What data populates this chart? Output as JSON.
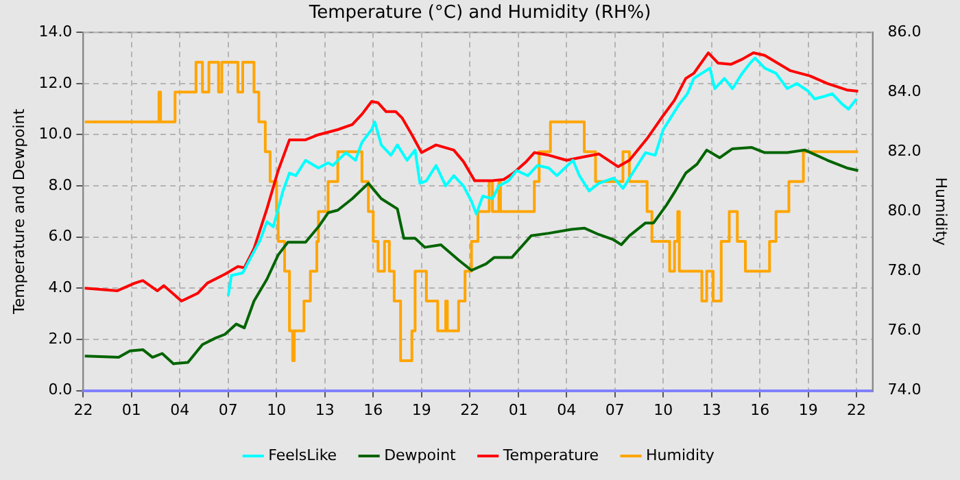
{
  "chart_data": {
    "type": "line",
    "title": "Temperature (°C) and Humidity (RH%)",
    "ylabel": "Temperature and Dewpoint",
    "y2label": "Humidity",
    "xlim": [
      "--01-01T22:00",
      "--01-03T23:00"
    ],
    "xticks": [
      {
        "value": "--01-01T22:00",
        "label": "22"
      },
      {
        "value": "--01-02T01:00",
        "label": "01"
      },
      {
        "value": "--01-02T04:00",
        "label": "04"
      },
      {
        "value": "--01-02T07:00",
        "label": "07"
      },
      {
        "value": "--01-02T10:00",
        "label": "10"
      },
      {
        "value": "--01-02T13:00",
        "label": "13"
      },
      {
        "value": "--01-02T16:00",
        "label": "16"
      },
      {
        "value": "--01-02T19:00",
        "label": "19"
      },
      {
        "value": "--01-02T22:00",
        "label": "22"
      },
      {
        "value": "--01-03T01:00",
        "label": "01"
      },
      {
        "value": "--01-03T04:00",
        "label": "04"
      },
      {
        "value": "--01-03T07:00",
        "label": "07"
      },
      {
        "value": "--01-03T10:00",
        "label": "10"
      },
      {
        "value": "--01-03T13:00",
        "label": "13"
      },
      {
        "value": "--01-03T16:00",
        "label": "16"
      },
      {
        "value": "--01-03T19:00",
        "label": "19"
      },
      {
        "value": "--01-03T22:00",
        "label": "22"
      }
    ],
    "ylim": [
      0,
      14
    ],
    "yticks": [
      {
        "value": 0,
        "label": "0.0"
      },
      {
        "value": 2,
        "label": "2.0"
      },
      {
        "value": 4,
        "label": "4.0"
      },
      {
        "value": 6,
        "label": "6.0"
      },
      {
        "value": 8,
        "label": "8.0"
      },
      {
        "value": 10,
        "label": "10.0"
      },
      {
        "value": 12,
        "label": "12.0"
      },
      {
        "value": 14,
        "label": "14.0"
      }
    ],
    "y2lim": [
      74,
      86
    ],
    "y2ticks": [
      {
        "value": 74,
        "label": "74.0"
      },
      {
        "value": 76,
        "label": "76.0"
      },
      {
        "value": 78,
        "label": "78.0"
      },
      {
        "value": 80,
        "label": "80.0"
      },
      {
        "value": 82,
        "label": "82.0"
      },
      {
        "value": 84,
        "label": "84.0"
      },
      {
        "value": 86,
        "label": "86.0"
      }
    ],
    "grid": true,
    "legend": "bottom",
    "marker": "none",
    "series": [
      {
        "name": "FeelsLike",
        "color": "#00ffff",
        "x": [
          "--01-02T07:00",
          "--01-02T07:12",
          "--01-02T07:54",
          "--01-02T08:24",
          "--01-02T09:00",
          "--01-02T09:24",
          "--01-02T09:48",
          "--01-02T10:06",
          "--01-02T10:24",
          "--01-02T10:48",
          "--01-02T11:12",
          "--01-02T11:48",
          "--01-02T12:36",
          "--01-02T13:12",
          "--01-02T13:30",
          "--01-02T14:18",
          "--01-02T14:54",
          "--01-02T15:18",
          "--01-02T15:54",
          "--01-02T16:06",
          "--01-02T16:30",
          "--01-02T17:06",
          "--01-02T17:30",
          "--01-02T18:06",
          "--01-02T18:36",
          "--01-02T18:54",
          "--01-02T19:18",
          "--01-02T19:54",
          "--01-02T20:30",
          "--01-02T21:00",
          "--01-02T21:36",
          "--01-02T22:06",
          "--01-02T22:24",
          "--01-02T22:48",
          "--01-02T23:24",
          "--01-02T23:48",
          "--01-03T00:24",
          "--01-03T00:54",
          "--01-03T01:36",
          "--01-03T02:12",
          "--01-03T02:54",
          "--01-03T03:24",
          "--01-03T04:24",
          "--01-03T04:48",
          "--01-03T05:24",
          "--01-03T06:00",
          "--01-03T06:54",
          "--01-03T07:06",
          "--01-03T07:30",
          "--01-03T08:24",
          "--01-03T08:54",
          "--01-03T09:30",
          "--01-03T10:00",
          "--01-03T10:24",
          "--01-03T11:00",
          "--01-03T11:30",
          "--01-03T11:54",
          "--01-03T12:24",
          "--01-03T12:54",
          "--01-03T13:12",
          "--01-03T13:48",
          "--01-03T14:18",
          "--01-03T14:54",
          "--01-03T15:24",
          "--01-03T15:42",
          "--01-03T16:18",
          "--01-03T17:00",
          "--01-03T17:42",
          "--01-03T18:18",
          "--01-03T19:00",
          "--01-03T19:24",
          "--01-03T20:00",
          "--01-03T20:30",
          "--01-03T21:06",
          "--01-03T21:30",
          "--01-03T22:00"
        ],
        "values": [
          3.7,
          4.5,
          4.6,
          5.2,
          5.9,
          6.6,
          6.4,
          7.1,
          7.8,
          8.5,
          8.4,
          9.0,
          8.7,
          8.9,
          8.8,
          9.3,
          9.0,
          9.7,
          10.2,
          10.5,
          9.6,
          9.2,
          9.6,
          9.0,
          9.4,
          8.1,
          8.2,
          8.8,
          8.0,
          8.4,
          8.0,
          7.4,
          6.9,
          7.6,
          7.5,
          8.0,
          8.2,
          8.6,
          8.4,
          8.8,
          8.7,
          8.4,
          9.0,
          8.4,
          7.8,
          8.1,
          8.3,
          8.2,
          7.9,
          8.8,
          9.3,
          9.2,
          10.2,
          10.6,
          11.2,
          11.6,
          12.2,
          12.4,
          12.6,
          11.8,
          12.2,
          11.8,
          12.4,
          12.8,
          13.0,
          12.6,
          12.4,
          11.8,
          12.0,
          11.7,
          11.4,
          11.5,
          11.6,
          11.2,
          11.0,
          11.4
        ]
      },
      {
        "name": "Dewpoint",
        "color": "#006400",
        "x": [
          "--01-01T22:06",
          "--01-02T00:12",
          "--01-02T00:54",
          "--01-02T01:42",
          "--01-02T02:18",
          "--01-02T02:54",
          "--01-02T03:36",
          "--01-02T04:30",
          "--01-02T05:24",
          "--01-02T06:12",
          "--01-02T06:48",
          "--01-02T07:30",
          "--01-02T08:00",
          "--01-02T08:36",
          "--01-02T09:24",
          "--01-02T10:06",
          "--01-02T10:42",
          "--01-02T11:48",
          "--01-02T12:36",
          "--01-02T13:12",
          "--01-02T13:48",
          "--01-02T14:42",
          "--01-02T15:42",
          "--01-02T16:30",
          "--01-02T17:30",
          "--01-02T17:54",
          "--01-02T18:36",
          "--01-02T19:12",
          "--01-02T20:12",
          "--01-02T21:18",
          "--01-02T22:06",
          "--01-02T23:00",
          "--01-02T23:30",
          "--01-03T00:36",
          "--01-03T01:48",
          "--01-03T02:54",
          "--01-03T04:18",
          "--01-03T05:06",
          "--01-03T06:00",
          "--01-03T06:54",
          "--01-03T07:24",
          "--01-03T07:54",
          "--01-03T08:54",
          "--01-03T09:24",
          "--01-03T10:12",
          "--01-03T10:42",
          "--01-03T11:24",
          "--01-03T12:06",
          "--01-03T12:42",
          "--01-03T13:30",
          "--01-03T14:18",
          "--01-03T15:30",
          "--01-03T16:18",
          "--01-03T17:42",
          "--01-03T18:48",
          "--01-03T20:12",
          "--01-03T21:24",
          "--01-03T22:06"
        ],
        "values": [
          1.35,
          1.3,
          1.55,
          1.6,
          1.3,
          1.45,
          1.05,
          1.1,
          1.8,
          2.05,
          2.2,
          2.6,
          2.45,
          3.5,
          4.35,
          5.3,
          5.8,
          5.8,
          6.4,
          6.95,
          7.05,
          7.5,
          8.1,
          7.5,
          7.1,
          5.95,
          5.95,
          5.6,
          5.7,
          5.1,
          4.7,
          4.95,
          5.2,
          5.2,
          6.05,
          6.15,
          6.3,
          6.35,
          6.1,
          5.9,
          5.7,
          6.05,
          6.55,
          6.55,
          7.25,
          7.75,
          8.5,
          8.85,
          9.4,
          9.1,
          9.45,
          9.5,
          9.3,
          9.3,
          9.4,
          9.0,
          8.7,
          8.6
        ]
      },
      {
        "name": "Temperature",
        "color": "#ff0000",
        "x": [
          "--01-01T22:06",
          "--01-02T00:06",
          "--01-02T01:12",
          "--01-02T01:42",
          "--01-02T02:36",
          "--01-02T03:00",
          "--01-02T04:06",
          "--01-02T05:06",
          "--01-02T05:42",
          "--01-02T06:48",
          "--01-02T07:36",
          "--01-02T08:00",
          "--01-02T08:36",
          "--01-02T09:24",
          "--01-02T10:06",
          "--01-02T10:48",
          "--01-02T11:48",
          "--01-02T12:36",
          "--01-02T13:48",
          "--01-02T14:42",
          "--01-02T15:18",
          "--01-02T15:54",
          "--01-02T16:18",
          "--01-02T16:48",
          "--01-02T17:24",
          "--01-02T17:48",
          "--01-02T18:24",
          "--01-02T19:00",
          "--01-02T19:54",
          "--01-02T21:00",
          "--01-02T21:36",
          "--01-02T22:18",
          "--01-02T23:18",
          "--01-03T00:06",
          "--01-03T00:42",
          "--01-03T01:30",
          "--01-03T02:00",
          "--01-03T02:54",
          "--01-03T04:00",
          "--01-03T04:48",
          "--01-03T06:00",
          "--01-03T07:12",
          "--01-03T07:54",
          "--01-03T09:00",
          "--01-03T10:00",
          "--01-03T10:42",
          "--01-03T11:24",
          "--01-03T11:54",
          "--01-03T12:48",
          "--01-03T13:24",
          "--01-03T14:12",
          "--01-03T14:54",
          "--01-03T15:36",
          "--01-03T16:18",
          "--01-03T17:06",
          "--01-03T17:54",
          "--01-03T19:06",
          "--01-03T20:12",
          "--01-03T21:24",
          "--01-03T22:06"
        ],
        "values": [
          4.0,
          3.9,
          4.2,
          4.3,
          3.9,
          4.1,
          3.5,
          3.8,
          4.2,
          4.55,
          4.85,
          4.8,
          5.55,
          7.1,
          8.6,
          9.8,
          9.8,
          10.0,
          10.2,
          10.4,
          10.8,
          11.3,
          11.25,
          10.9,
          10.9,
          10.65,
          10.0,
          9.3,
          9.6,
          9.4,
          8.95,
          8.2,
          8.2,
          8.25,
          8.5,
          8.95,
          9.3,
          9.2,
          9.0,
          9.1,
          9.25,
          8.75,
          9.0,
          9.85,
          10.75,
          11.35,
          12.2,
          12.4,
          13.2,
          12.8,
          12.75,
          12.95,
          13.2,
          13.1,
          12.8,
          12.5,
          12.3,
          12.0,
          11.75,
          11.7
        ]
      },
      {
        "name": "Humidity",
        "color": "#ffa500",
        "type": "step",
        "axis": "y2",
        "x": [
          "--01-01T22:06",
          "--01-02T02:42",
          "--01-02T02:48",
          "--01-02T03:42",
          "--01-02T05:00",
          "--01-02T05:24",
          "--01-02T05:48",
          "--01-02T06:24",
          "--01-02T06:36",
          "--01-02T07:36",
          "--01-02T07:54",
          "--01-02T08:36",
          "--01-02T08:54",
          "--01-02T09:18",
          "--01-02T09:36",
          "--01-02T10:00",
          "--01-02T10:06",
          "--01-02T10:30",
          "--01-02T10:48",
          "--01-02T11:00",
          "--01-02T11:06",
          "--01-02T11:42",
          "--01-02T12:06",
          "--01-02T12:30",
          "--01-02T12:36",
          "--01-02T13:12",
          "--01-02T13:48",
          "--01-02T15:18",
          "--01-02T15:42",
          "--01-02T16:00",
          "--01-02T16:18",
          "--01-02T16:42",
          "--01-02T17:00",
          "--01-02T17:18",
          "--01-02T17:42",
          "--01-02T18:24",
          "--01-02T18:36",
          "--01-02T19:18",
          "--01-02T20:00",
          "--01-02T20:30",
          "--01-02T20:36",
          "--01-02T21:18",
          "--01-02T21:42",
          "--01-02T22:06",
          "--01-02T22:30",
          "--01-02T23:12",
          "--01-02T23:24",
          "--01-02T23:48",
          "--01-02T23:54",
          "--01-03T02:00",
          "--01-03T02:18",
          "--01-03T03:00",
          "--01-03T05:06",
          "--01-03T05:48",
          "--01-03T07:30",
          "--01-03T07:54",
          "--01-03T09:00",
          "--01-03T09:18",
          "--01-03T10:24",
          "--01-03T10:42",
          "--01-03T10:54",
          "--01-03T11:00",
          "--01-03T12:24",
          "--01-03T12:42",
          "--01-03T13:06",
          "--01-03T13:36",
          "--01-03T14:06",
          "--01-03T14:36",
          "--01-03T15:06",
          "--01-03T16:36",
          "--01-03T17:00",
          "--01-03T17:48",
          "--01-03T18:42",
          "--01-03T22:06"
        ],
        "values": [
          83.0,
          84.0,
          83.0,
          84.0,
          85.0,
          84.0,
          85.0,
          84.0,
          85.0,
          84.0,
          85.0,
          84.0,
          83.0,
          82.0,
          81.0,
          80.0,
          79.0,
          78.0,
          76.0,
          75.0,
          76.0,
          77.0,
          78.0,
          79.0,
          80.0,
          81.0,
          82.0,
          81.0,
          80.0,
          79.0,
          78.0,
          79.0,
          78.0,
          77.0,
          75.0,
          76.0,
          78.0,
          77.0,
          76.0,
          77.0,
          76.0,
          77.0,
          78.0,
          79.0,
          80.0,
          81.0,
          80.0,
          81.0,
          80.0,
          81.0,
          82.0,
          83.0,
          82.0,
          81.0,
          82.0,
          81.0,
          80.0,
          79.0,
          78.0,
          79.0,
          80.0,
          78.0,
          77.0,
          78.0,
          77.0,
          79.0,
          80.0,
          79.0,
          78.0,
          79.0,
          80.0,
          81.0,
          82.0,
          82.0
        ]
      }
    ]
  }
}
